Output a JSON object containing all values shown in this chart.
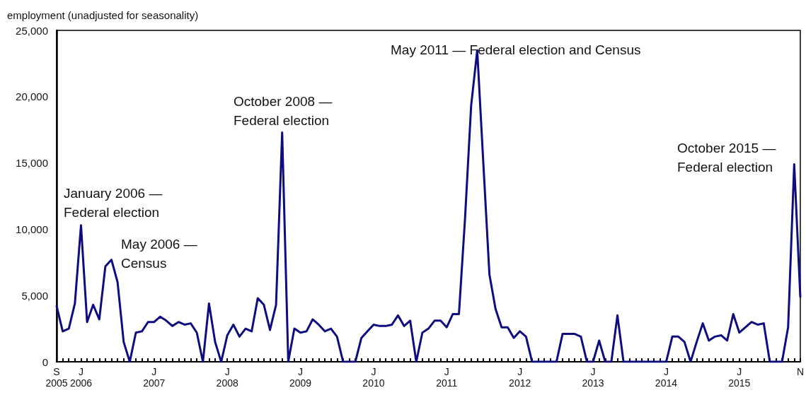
{
  "chart_data": {
    "type": "line",
    "ylabel": "employment (unadjusted for seasonality)",
    "categories": [
      "S\n2005",
      null,
      null,
      null,
      "J\n2006",
      null,
      null,
      null,
      null,
      null,
      null,
      null,
      null,
      null,
      null,
      null,
      "J\n2007",
      null,
      null,
      null,
      null,
      null,
      null,
      null,
      null,
      null,
      null,
      null,
      "J\n2008",
      null,
      null,
      null,
      null,
      null,
      null,
      null,
      null,
      null,
      null,
      null,
      "J\n2009",
      null,
      null,
      null,
      null,
      null,
      null,
      null,
      null,
      null,
      null,
      null,
      "J\n2010",
      null,
      null,
      null,
      null,
      null,
      null,
      null,
      null,
      null,
      null,
      null,
      "J\n2011",
      null,
      null,
      null,
      null,
      null,
      null,
      null,
      null,
      null,
      null,
      null,
      "J\n2012",
      null,
      null,
      null,
      null,
      null,
      null,
      null,
      null,
      null,
      null,
      null,
      "J\n2013",
      null,
      null,
      null,
      null,
      null,
      null,
      null,
      null,
      null,
      null,
      null,
      "J\n2014",
      null,
      null,
      null,
      null,
      null,
      null,
      null,
      null,
      null,
      null,
      null,
      "J\n2015",
      null,
      null,
      null,
      null,
      null,
      null,
      null,
      null,
      null,
      "N"
    ],
    "series": [
      {
        "color": "#0d0d80",
        "values": [
          4200,
          2300,
          2500,
          4400,
          10300,
          3000,
          4300,
          3200,
          7200,
          7700,
          6000,
          1500,
          0,
          2200,
          2300,
          3000,
          3000,
          3400,
          3100,
          2700,
          3000,
          2800,
          2900,
          2200,
          0,
          4400,
          1500,
          0,
          2000,
          2800,
          1900,
          2500,
          2300,
          4800,
          4300,
          2400,
          4300,
          17300,
          0,
          2500,
          2200,
          2300,
          3200,
          2800,
          2300,
          2500,
          1900,
          0,
          0,
          0,
          1800,
          2300,
          2800,
          2700,
          2700,
          2800,
          3500,
          2700,
          3100,
          0,
          2200,
          2500,
          3100,
          3100,
          2600,
          3600,
          3600,
          10800,
          19300,
          23500,
          15000,
          6600,
          4000,
          2600,
          2600,
          1800,
          2300,
          1900,
          0,
          0,
          0,
          0,
          0,
          2100,
          2100,
          2100,
          1900,
          0,
          0,
          1600,
          0,
          0,
          3500,
          0,
          0,
          0,
          0,
          0,
          0,
          0,
          0,
          1900,
          1900,
          1500,
          0,
          1500,
          2900,
          1600,
          1900,
          2000,
          1600,
          3600,
          2200,
          2600,
          3000,
          2800,
          2900,
          0,
          0,
          0,
          2600,
          14900,
          4900
        ]
      }
    ],
    "ylim": [
      0,
      25000
    ],
    "yticks": [
      0,
      {
        "value": 5000,
        "label": "5,000"
      },
      {
        "value": 10000,
        "label": "10,000"
      },
      {
        "value": 15000,
        "label": "15,000"
      },
      {
        "value": 20000,
        "label": "20,000"
      },
      {
        "value": 25000,
        "label": "25,000"
      }
    ],
    "grid": false,
    "marker": "none",
    "line_style": "solid",
    "annotations": [
      "January 2006 —\nFederal election",
      "May 2006 —\nCensus",
      "October 2008 —\nFederal election",
      "May 2011 — Federal election and Census",
      "October 2015 —\nFederal election"
    ]
  }
}
